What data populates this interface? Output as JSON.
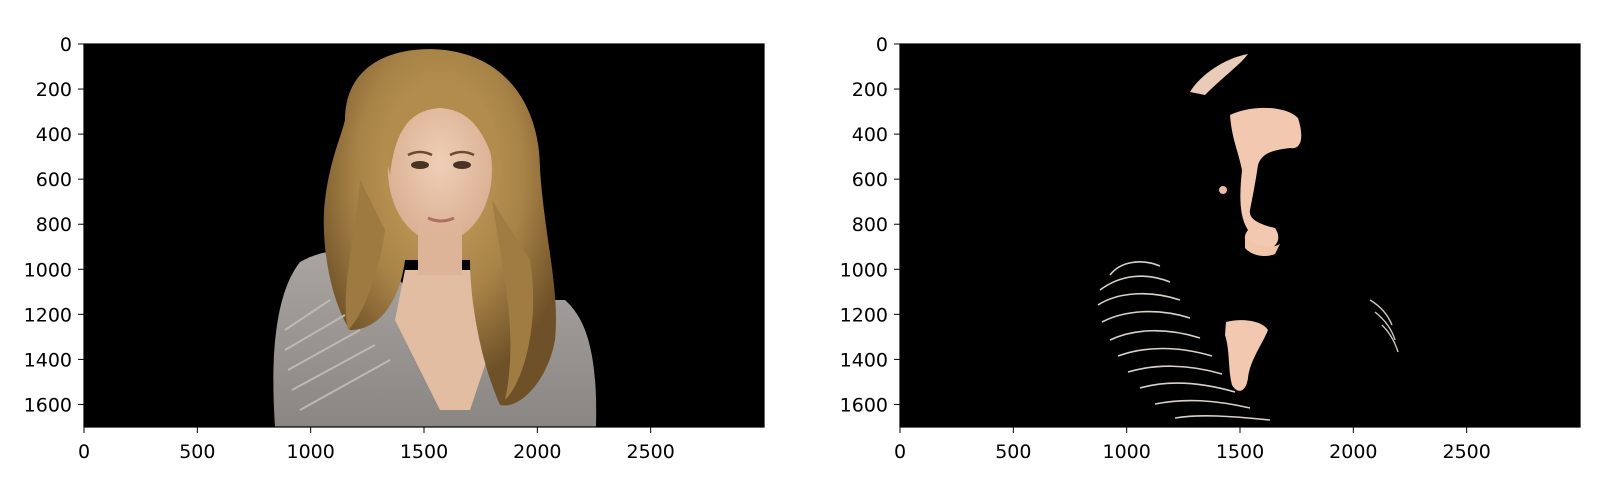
{
  "chart_data": [
    {
      "type": "image",
      "title": "",
      "xlabel": "",
      "ylabel": "",
      "xlim": [
        0,
        3000
      ],
      "ylim": [
        1700,
        0
      ],
      "xticks": [
        0,
        500,
        1000,
        1500,
        2000,
        2500
      ],
      "yticks": [
        0,
        200,
        400,
        600,
        800,
        1000,
        1200,
        1400,
        1600
      ],
      "image": "original portrait photo (woman with long blonde hair, grey cardigan, black background)",
      "colors": {
        "background": "#000000",
        "hair": "#b08a4a",
        "skin": "#e8c4a8",
        "cardigan": "#9c9794"
      }
    },
    {
      "type": "image",
      "title": "",
      "xlabel": "",
      "ylabel": "",
      "xlim": [
        0,
        3000
      ],
      "ylim": [
        1700,
        0
      ],
      "xticks": [
        0,
        500,
        1000,
        1500,
        2000,
        2500
      ],
      "yticks": [
        0,
        200,
        400,
        600,
        800,
        1000,
        1200,
        1400,
        1600
      ],
      "image": "skin-color segmentation mask of the portrait (skin regions kept, rest black)",
      "colors": {
        "background": "#000000",
        "skin": "#f2c9b0",
        "texture": "#d9d2cc"
      }
    }
  ]
}
